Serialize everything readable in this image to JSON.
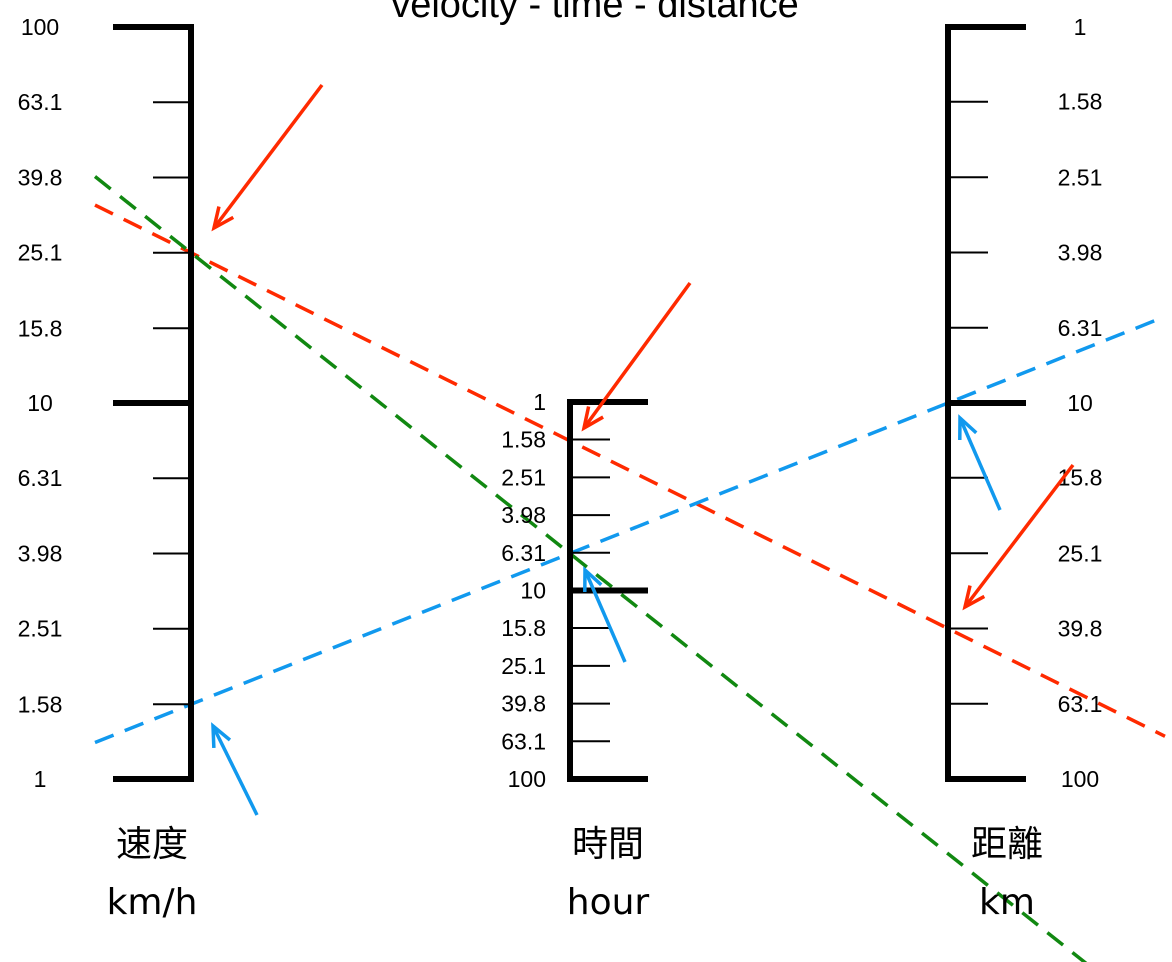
{
  "title": "velocity - time - distance",
  "colors": {
    "red": "#ff2a00",
    "green": "#118811",
    "blue": "#1199ee"
  },
  "axes": [
    {
      "id": "velocity",
      "name": "速度",
      "unit": "km/h",
      "ticks": [
        "100",
        "63.1",
        "39.8",
        "25.1",
        "15.8",
        "10",
        "6.31",
        "3.98",
        "2.51",
        "1.58",
        "1"
      ],
      "major": [
        "100",
        "10",
        "1"
      ]
    },
    {
      "id": "time",
      "name": "時間",
      "unit": "hour",
      "ticks": [
        "1",
        "1.58",
        "2.51",
        "3.98",
        "6.31",
        "10",
        "15.8",
        "25.1",
        "39.8",
        "63.1",
        "100"
      ],
      "major": [
        "1",
        "10",
        "100"
      ]
    },
    {
      "id": "distance",
      "name": "距離",
      "unit": "km",
      "ticks": [
        "1",
        "1.58",
        "2.51",
        "3.98",
        "6.31",
        "10",
        "15.8",
        "25.1",
        "39.8",
        "63.1",
        "100"
      ],
      "major": [
        "1",
        "10",
        "100"
      ]
    }
  ],
  "examples": [
    {
      "color": "red",
      "velocity": 25.1,
      "time": 1.58,
      "distance": 39.8
    },
    {
      "color": "green",
      "velocity": 25.1,
      "time": 6.31,
      "distance": 158
    },
    {
      "color": "blue",
      "velocity": 1.58,
      "time": 6.31,
      "distance": 10
    }
  ]
}
